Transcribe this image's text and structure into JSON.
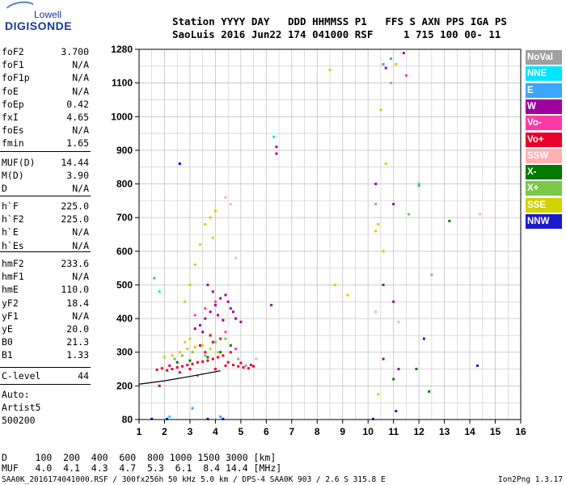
{
  "logo": {
    "top": "Lowell",
    "main": "DIGISONDE"
  },
  "header": {
    "line1": "Station YYYY DAY   DDD HHMMSS P1   FFS S AXN PPS IGA PS",
    "line2": "SaoLuis 2016 Jun22 174 041000 RSF     1 715 100 00- 11"
  },
  "parameters_a": [
    {
      "name": "foF2",
      "value": "3.700"
    },
    {
      "name": "foF1",
      "value": "N/A"
    },
    {
      "name": "foF1p",
      "value": "N/A"
    },
    {
      "name": "foE",
      "value": "N/A"
    },
    {
      "name": "foEp",
      "value": "0.42"
    },
    {
      "name": "fxI",
      "value": "4.65"
    },
    {
      "name": "foEs",
      "value": "N/A"
    },
    {
      "name": "fmin",
      "value": "1.65"
    }
  ],
  "parameters_b": [
    {
      "name": "MUF(D)",
      "value": "14.44"
    },
    {
      "name": "M(D)",
      "value": "3.90"
    },
    {
      "name": "D",
      "value": "N/A"
    }
  ],
  "parameters_c": [
    {
      "name": "h`F",
      "value": "225.0"
    },
    {
      "name": "h`F2",
      "value": "225.0"
    },
    {
      "name": "h`E",
      "value": "N/A"
    },
    {
      "name": "h`Es",
      "value": "N/A"
    }
  ],
  "parameters_d": [
    {
      "name": "hmF2",
      "value": "233.6"
    },
    {
      "name": "hmF1",
      "value": "N/A"
    },
    {
      "name": "hmE",
      "value": "110.0"
    },
    {
      "name": "yF2",
      "value": "18.4"
    },
    {
      "name": "yF1",
      "value": "N/A"
    },
    {
      "name": "yE",
      "value": "20.0"
    },
    {
      "name": "B0",
      "value": "21.3"
    },
    {
      "name": "B1",
      "value": "1.33"
    }
  ],
  "clevel": {
    "name": "C-level",
    "value": "44"
  },
  "autoscaling": [
    "Auto:",
    "Artist5",
    "500200"
  ],
  "legend": [
    {
      "label": "NoVal",
      "color": "#a0a0a0"
    },
    {
      "label": "NNE",
      "color": "#00e5ff"
    },
    {
      "label": "E",
      "color": "#3aa6ff"
    },
    {
      "label": "W",
      "color": "#a000a0"
    },
    {
      "label": "Vo-",
      "color": "#ff3aa6"
    },
    {
      "label": "Vo+",
      "color": "#e8002a"
    },
    {
      "label": "SSW",
      "color": "#ffb0b0"
    },
    {
      "label": "X-",
      "color": "#007a00"
    },
    {
      "label": "X+",
      "color": "#7ac84a"
    },
    {
      "label": "SSE",
      "color": "#d2d200"
    },
    {
      "label": "NNW",
      "color": "#1a1acc"
    }
  ],
  "muf_table": {
    "row1": "D     100  200  400  600  800 1000 1500 3000 [km]",
    "row2": "MUF   4.0  4.1  4.3  4.7  5.3  6.1  8.4 14.4 [MHz]"
  },
  "footer": {
    "left": "SAA0K_2016174041000.RSF / 300fx256h 50 kHz 5.0 km / DPS-4 SAA0K 903 / 2.6 S 315.8 E",
    "right": "Ion2Png 1.3.17"
  },
  "chart_data": {
    "type": "scatter",
    "title": "",
    "xlabel": "",
    "ylabel": "",
    "xlim": [
      1,
      16
    ],
    "ylim": [
      80,
      1280
    ],
    "x_ticks": [
      1,
      2,
      3,
      4,
      5,
      6,
      7,
      8,
      9,
      10,
      11,
      12,
      13,
      14,
      15,
      16
    ],
    "y_ticks": [
      80,
      200,
      300,
      400,
      500,
      600,
      700,
      800,
      900,
      1000,
      1100,
      1280
    ],
    "grid": true,
    "legend_placement": "right",
    "series": [
      {
        "name": "Vo+",
        "color": "#e8002a",
        "points": [
          [
            1.7,
            248
          ],
          [
            1.9,
            252
          ],
          [
            2.1,
            246
          ],
          [
            2.3,
            250
          ],
          [
            2.5,
            255
          ],
          [
            2.7,
            258
          ],
          [
            2.9,
            262
          ],
          [
            3.1,
            265
          ],
          [
            3.3,
            270
          ],
          [
            3.5,
            272
          ],
          [
            3.7,
            275
          ],
          [
            3.9,
            280
          ],
          [
            4.1,
            285
          ],
          [
            4.3,
            290
          ],
          [
            4.5,
            270
          ],
          [
            4.7,
            262
          ],
          [
            4.9,
            258
          ],
          [
            5.1,
            255
          ],
          [
            5.3,
            252
          ],
          [
            5.5,
            258
          ],
          [
            3.6,
            300
          ],
          [
            3.9,
            330
          ],
          [
            4.2,
            340
          ],
          [
            3.4,
            320
          ],
          [
            2.2,
            260
          ],
          [
            2.6,
            240
          ],
          [
            3.0,
            250
          ],
          [
            4.0,
            250
          ],
          [
            4.4,
            260
          ],
          [
            5.0,
            268
          ],
          [
            5.4,
            262
          ],
          [
            3.8,
            350
          ],
          [
            4.6,
            300
          ]
        ]
      },
      {
        "name": "W",
        "color": "#a000a0",
        "points": [
          [
            3.4,
            380
          ],
          [
            3.6,
            400
          ],
          [
            3.8,
            420
          ],
          [
            4.0,
            440
          ],
          [
            4.2,
            460
          ],
          [
            4.4,
            470
          ],
          [
            4.6,
            430
          ],
          [
            4.8,
            400
          ],
          [
            5.0,
            390
          ],
          [
            3.5,
            360
          ],
          [
            3.9,
            480
          ],
          [
            4.1,
            410
          ],
          [
            4.3,
            395
          ],
          [
            4.5,
            450
          ],
          [
            4.7,
            420
          ],
          [
            3.7,
            500
          ],
          [
            3.2,
            370
          ],
          [
            6.4,
            890
          ],
          [
            6.4,
            910
          ],
          [
            10.3,
            800
          ],
          [
            10.6,
            280
          ],
          [
            11.2,
            250
          ],
          [
            11.0,
            740
          ],
          [
            10.7,
            1180
          ],
          [
            11.4,
            1260
          ],
          [
            11.0,
            450
          ],
          [
            2.6,
            860
          ],
          [
            1.8,
            200
          ],
          [
            6.2,
            440
          ]
        ]
      },
      {
        "name": "SSE",
        "color": "#d2d200",
        "points": [
          [
            2.0,
            285
          ],
          [
            2.3,
            290
          ],
          [
            2.6,
            300
          ],
          [
            2.9,
            310
          ],
          [
            3.2,
            315
          ],
          [
            3.5,
            320
          ],
          [
            3.8,
            310
          ],
          [
            4.1,
            300
          ],
          [
            2.8,
            330
          ],
          [
            3.0,
            340
          ],
          [
            3.4,
            620
          ],
          [
            3.6,
            680
          ],
          [
            3.8,
            700
          ],
          [
            4.0,
            720
          ],
          [
            3.2,
            560
          ],
          [
            3.0,
            500
          ],
          [
            2.8,
            450
          ],
          [
            3.9,
            640
          ],
          [
            10.4,
            170
          ],
          [
            10.3,
            660
          ],
          [
            10.4,
            680
          ],
          [
            10.5,
            1020
          ],
          [
            10.6,
            600
          ],
          [
            10.7,
            860
          ],
          [
            8.5,
            1170
          ],
          [
            8.7,
            500
          ],
          [
            9.2,
            470
          ],
          [
            11.1,
            1200
          ]
        ]
      },
      {
        "name": "X+",
        "color": "#7ac84a",
        "points": [
          [
            2.4,
            280
          ],
          [
            2.7,
            290
          ],
          [
            3.1,
            300
          ],
          [
            3.6,
            290
          ],
          [
            4.0,
            330
          ],
          [
            4.4,
            340
          ],
          [
            10.3,
            740
          ],
          [
            10.9,
            1100
          ],
          [
            11.6,
            710
          ],
          [
            12.0,
            800
          ],
          [
            12.5,
            530
          ]
        ]
      },
      {
        "name": "X-",
        "color": "#007a00",
        "points": [
          [
            2.5,
            270
          ],
          [
            3.0,
            275
          ],
          [
            3.7,
            285
          ],
          [
            4.2,
            300
          ],
          [
            4.6,
            320
          ],
          [
            11.0,
            220
          ],
          [
            11.9,
            250
          ],
          [
            12.4,
            180
          ],
          [
            13.2,
            690
          ],
          [
            10.6,
            500
          ]
        ]
      },
      {
        "name": "SSW",
        "color": "#ffb0b0",
        "points": [
          [
            4.6,
            740
          ],
          [
            4.4,
            760
          ],
          [
            4.8,
            580
          ],
          [
            14.4,
            710
          ],
          [
            10.3,
            420
          ],
          [
            11.2,
            390
          ],
          [
            5.6,
            280
          ]
        ]
      },
      {
        "name": "Vo-",
        "color": "#ff3aa6",
        "points": [
          [
            3.2,
            410
          ],
          [
            3.6,
            430
          ],
          [
            4.0,
            450
          ],
          [
            4.4,
            360
          ],
          [
            4.8,
            310
          ],
          [
            11.5,
            1140
          ]
        ]
      },
      {
        "name": "E",
        "color": "#3aa6ff",
        "points": [
          [
            1.6,
            520
          ],
          [
            10.6,
            1200
          ],
          [
            12.0,
            795
          ],
          [
            4.2,
            90
          ],
          [
            3.1,
            120
          ],
          [
            10.9,
            1230
          ]
        ]
      },
      {
        "name": "NNE",
        "color": "#00e5ff",
        "points": [
          [
            1.8,
            480
          ],
          [
            6.3,
            940
          ],
          [
            2.2,
            90
          ]
        ]
      },
      {
        "name": "NNW",
        "color": "#1a1acc",
        "points": [
          [
            2.6,
            860
          ],
          [
            10.2,
            82
          ],
          [
            11.1,
            110
          ],
          [
            12.2,
            340
          ],
          [
            14.3,
            260
          ],
          [
            1.5,
            82
          ],
          [
            2.1,
            82
          ],
          [
            3.7,
            82
          ],
          [
            4.3,
            82
          ]
        ]
      },
      {
        "name": "NoVal",
        "color": "#a0a0a0",
        "points": [
          [
            3.3,
            230
          ],
          [
            4.9,
            280
          ],
          [
            5.2,
            260
          ]
        ]
      }
    ],
    "trace": {
      "points": [
        [
          1,
          205
        ],
        [
          2,
          215
        ],
        [
          3,
          228
        ],
        [
          4,
          242
        ],
        [
          4.2,
          245
        ]
      ]
    }
  }
}
